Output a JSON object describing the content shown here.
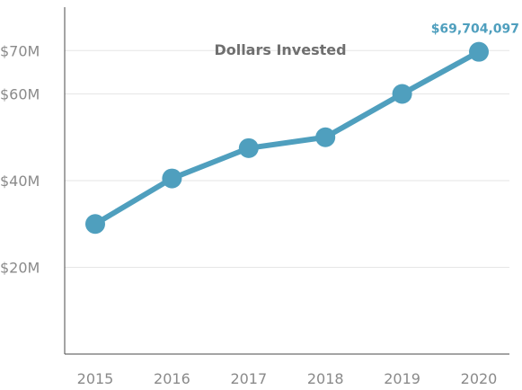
{
  "chart_data": {
    "type": "line",
    "title": "Dollars Invested",
    "xlabel": "",
    "ylabel": "",
    "categories": [
      "2015",
      "2016",
      "2017",
      "2018",
      "2019",
      "2020"
    ],
    "series": [
      {
        "values": [
          30000000,
          40500000,
          47500000,
          50000000,
          60000000,
          69704097
        ]
      }
    ],
    "ylim": [
      0,
      80000000
    ],
    "yticks": [
      {
        "value": 20000000,
        "label": "$20M"
      },
      {
        "value": 40000000,
        "label": "$40M"
      },
      {
        "value": 60000000,
        "label": "$60M"
      },
      {
        "value": 70000000,
        "label": "$70M"
      }
    ],
    "annotations": [
      {
        "category": "2020",
        "text": "$69,704,097"
      }
    ],
    "grid": true,
    "legend": "none",
    "colors": {
      "line": "#4f9fbe",
      "point": "#4f9fbe",
      "grid": "#e6e6e6",
      "axis": "#4a4a4a",
      "tick_text": "#8a8a8a",
      "title_text": "#6f6f6f",
      "annotation_text": "#4f9fbe"
    }
  }
}
